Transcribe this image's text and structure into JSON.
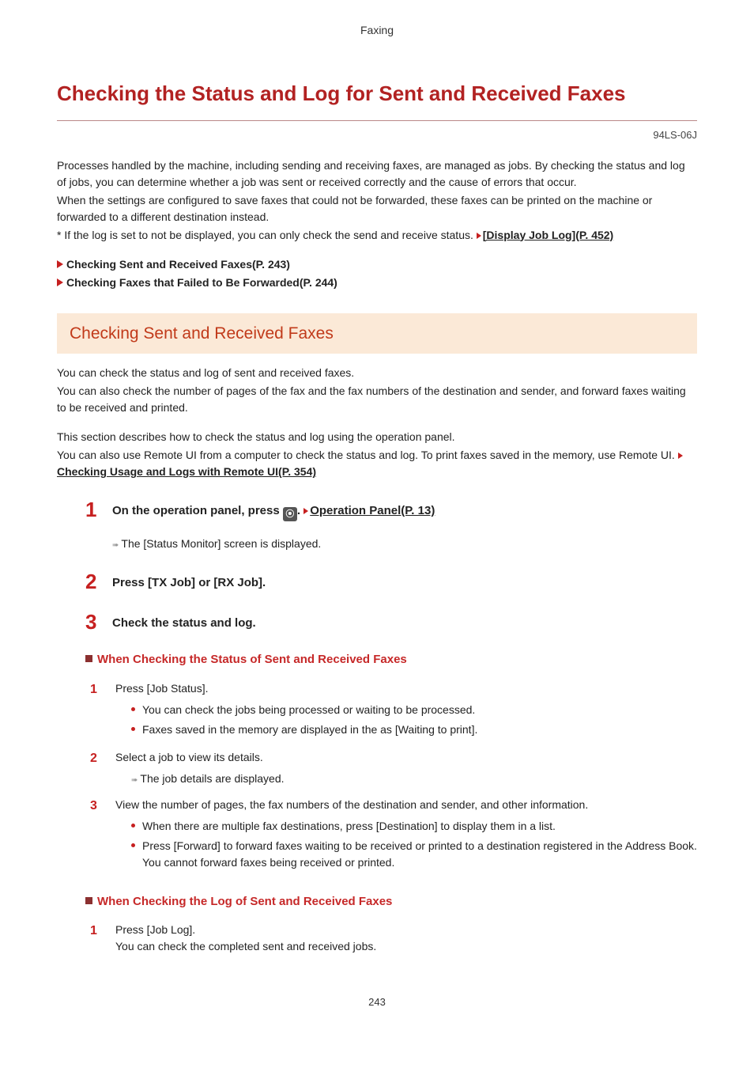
{
  "header": {
    "category": "Faxing"
  },
  "title": "Checking the Status and Log for Sent and Received Faxes",
  "doc_code": "94LS-06J",
  "intro": {
    "p1": "Processes handled by the machine, including sending and receiving faxes, are managed as jobs. By checking the status and log of jobs, you can determine whether a job was sent or received correctly and the cause of errors that occur.",
    "p2": "When the settings are configured to save faxes that could not be forwarded, these faxes can be printed on the machine or forwarded to a different destination instead.",
    "p3_pre": "* If the log is set to not be displayed, you can only check the send and receive status. ",
    "p3_link": "[Display Job Log](P. 452)"
  },
  "toc": {
    "l1": "Checking Sent and Received Faxes(P. 243)",
    "l2": "Checking Faxes that Failed to Be Forwarded(P. 244)"
  },
  "section1": {
    "banner": "Checking Sent and Received Faxes",
    "p1": "You can check the status and log of sent and received faxes.",
    "p2": "You can also check the number of pages of the fax and the fax numbers of the destination and sender, and forward faxes waiting to be received and printed.",
    "p3": "This section describes how to check the status and log using the operation panel.",
    "p4_pre": "You can also use Remote UI from a computer to check the status and log. To print faxes saved in the memory, use Remote UI. ",
    "p4_link": "Checking Usage and Logs with Remote UI(P. 354)"
  },
  "steps": {
    "s1_pre": "On the operation panel, press ",
    "s1_post": ". ",
    "s1_link": "Operation Panel(P. 13)",
    "s1_result": "The [Status Monitor] screen is displayed.",
    "s2": "Press [TX Job] or [RX Job].",
    "s3": "Check the status and log."
  },
  "sub_a": {
    "heading": "When Checking the Status of Sent and Received Faxes",
    "s1": "Press [Job Status].",
    "s1_b1": "You can check the jobs being processed or waiting to be processed.",
    "s1_b2": "Faxes saved in the memory are displayed in the as [Waiting to print].",
    "s2": "Select a job to view its details.",
    "s2_result": "The job details are displayed.",
    "s3": "View the number of pages, the fax numbers of the destination and sender, and other information.",
    "s3_b1": "When there are multiple fax destinations, press [Destination] to display them in a list.",
    "s3_b2": "Press [Forward] to forward faxes waiting to be received or printed to a destination registered in the Address Book. You cannot forward faxes being received or printed."
  },
  "sub_b": {
    "heading": "When Checking the Log of Sent and Received Faxes",
    "s1": "Press [Job Log].",
    "s1_line": "You can check the completed sent and received jobs."
  },
  "footer": {
    "page": "243"
  },
  "colors": {
    "accent": "#c62020",
    "banner_bg": "#fbe9d7",
    "banner_text": "#c13a1a"
  }
}
